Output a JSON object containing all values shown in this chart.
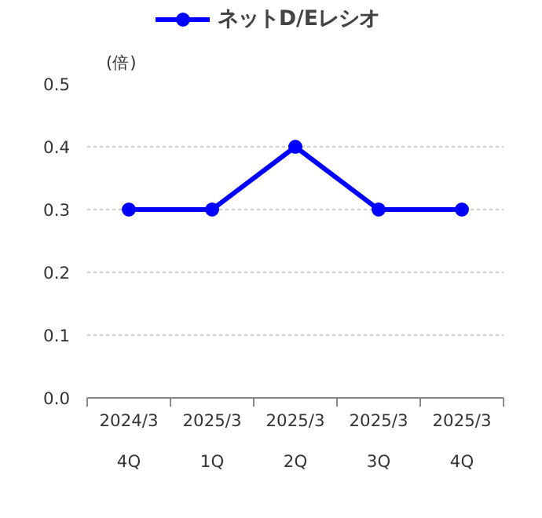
{
  "chart_data": {
    "type": "line",
    "ylabel": "(倍)",
    "categories": [
      "2024/3\n4Q",
      "2025/3\n1Q",
      "2025/3\n2Q",
      "2025/3\n3Q",
      "2025/3\n4Q"
    ],
    "series": [
      {
        "name": "ネットD/Eレシオ",
        "color": "#0000ff",
        "values": [
          0.3,
          0.3,
          0.4,
          0.3,
          0.3
        ]
      }
    ],
    "ylim": [
      0,
      0.5
    ],
    "yticks": [
      {
        "value": 0,
        "label": "0.0"
      },
      {
        "value": 0.1,
        "label": "0.1"
      },
      {
        "value": 0.2,
        "label": "0.2"
      },
      {
        "value": 0.3,
        "label": "0.3"
      },
      {
        "value": 0.4,
        "label": "0.4"
      },
      {
        "value": 0.5,
        "label": "0.5"
      }
    ],
    "grid": "y",
    "legend": "top",
    "marker": "circle",
    "line_style": "solid"
  }
}
